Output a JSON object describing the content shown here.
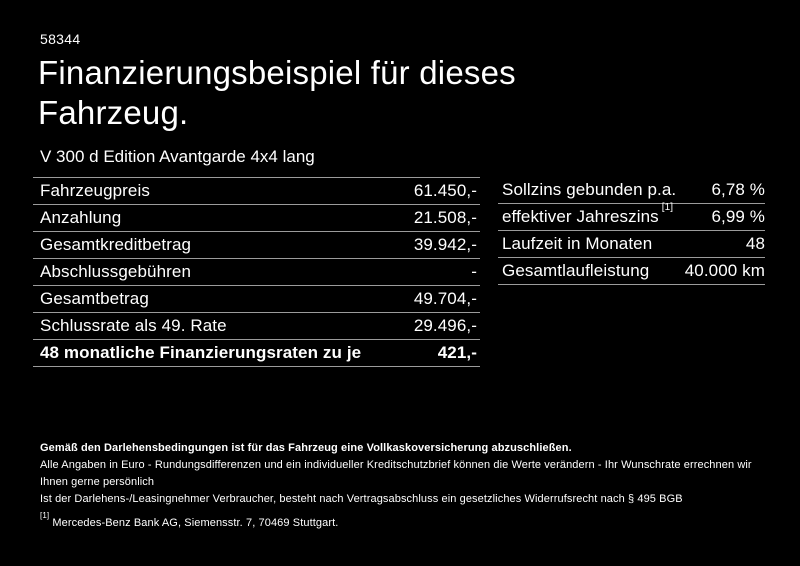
{
  "page": {
    "background_color": "#000000",
    "text_color": "#ffffff",
    "divider_color": "#9b9b9b"
  },
  "header": {
    "reference_number": "58344",
    "title_line1": "Finanzierungsbeispiel für dieses",
    "title_line2": "Fahrzeug.",
    "vehicle_model": "V 300 d Edition Avantgarde 4x4 lang"
  },
  "financing_table": {
    "rows": [
      {
        "label": "Fahrzeugpreis",
        "value": "61.450,-"
      },
      {
        "label": "Anzahlung",
        "value": "21.508,-"
      },
      {
        "label": "Gesamtkreditbetrag",
        "value": "39.942,-"
      },
      {
        "label": "Abschlussgebühren",
        "value": "-"
      },
      {
        "label": "Gesamtbetrag",
        "value": "49.704,-"
      },
      {
        "label": "Schlussrate als 49. Rate",
        "value": "29.496,-"
      },
      {
        "label": "48 monatliche Finanzierungsraten zu je",
        "value": "421,-",
        "emphasis": true
      }
    ]
  },
  "conditions_table": {
    "rows": [
      {
        "label": "Sollzins gebunden p.a.",
        "value": "6,78 %"
      },
      {
        "label": "effektiver Jahreszins",
        "marker": "[1]",
        "value": "6,99 %"
      },
      {
        "label": "Laufzeit in Monaten",
        "value": "48"
      },
      {
        "label": "Gesamtlaufleistung",
        "value": "40.000 km"
      }
    ]
  },
  "footer": {
    "insurance_note": "Gemäß den Darlehensbedingungen ist für das Fahrzeug eine Vollkaskoversicherung abzuschließen.",
    "disclaimer_line1": "Alle Angaben in Euro - Rundungsdifferenzen und ein individueller Kreditschutzbrief können die Werte verändern - Ihr Wunschrate errechnen wir Ihnen gerne persönlich",
    "disclaimer_line2": "Ist der Darlehens-/Leasingnehmer Verbraucher, besteht nach Vertragsabschluss ein gesetzliches Widerrufsrecht nach § 495 BGB",
    "footnote_marker": "[1]",
    "footnote_text": "Mercedes-Benz Bank AG, Siemensstr. 7, 70469 Stuttgart."
  }
}
